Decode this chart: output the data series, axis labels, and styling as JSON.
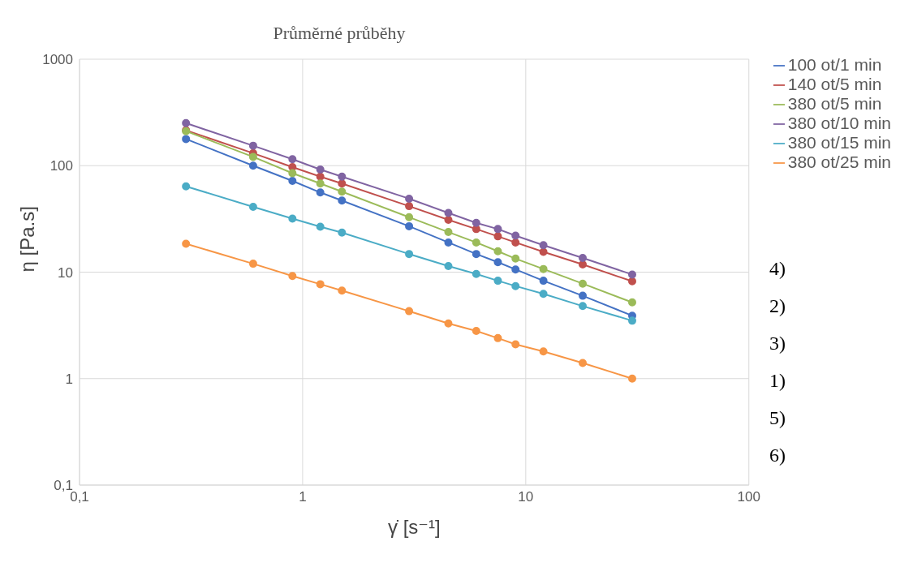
{
  "chart_data": {
    "type": "line",
    "title": "Průměrné průběhy",
    "xlabel": "γ̇  [s⁻¹]",
    "ylabel": "η [Pa.s]",
    "x": [
      0.3,
      0.6,
      0.9,
      1.2,
      1.5,
      3,
      4.5,
      6,
      7.5,
      9,
      12,
      18,
      30
    ],
    "series": [
      {
        "name": "100 ot/1 min",
        "color": "#4472c4",
        "values": [
          178,
          100,
          72,
          56,
          47,
          27,
          19,
          14.8,
          12.4,
          10.6,
          8.3,
          6,
          3.9
        ]
      },
      {
        "name": "140 ot/5 min",
        "color": "#c0504d",
        "values": [
          215,
          131,
          97,
          79,
          68,
          41.7,
          31,
          25.4,
          21.7,
          19,
          15.5,
          11.8,
          8.2
        ]
      },
      {
        "name": "380 ot/5 min",
        "color": "#9bbb59",
        "values": [
          211,
          121,
          85,
          68,
          57,
          32.8,
          23.8,
          19,
          15.7,
          13.4,
          10.7,
          7.8,
          5.2
        ]
      },
      {
        "name": "380 ot/10 min",
        "color": "#8064a2",
        "values": [
          251,
          154,
          115,
          92,
          79,
          49,
          36,
          29,
          25.4,
          22,
          17.9,
          13.6,
          9.5
        ]
      },
      {
        "name": "380 ot/15 min",
        "color": "#4bacc6",
        "values": [
          64,
          41,
          31.8,
          26.7,
          23.5,
          14.8,
          11.4,
          9.6,
          8.3,
          7.4,
          6.25,
          4.8,
          3.5
        ]
      },
      {
        "name": "380 ot/25 min",
        "color": "#f79646",
        "values": [
          18.5,
          12,
          9.2,
          7.7,
          6.7,
          4.3,
          3.3,
          2.8,
          2.4,
          2.1,
          1.8,
          1.4,
          1.0
        ]
      }
    ],
    "xlim": [
      0.1,
      100
    ],
    "xticks": [
      {
        "value": 0.1,
        "label": "0,1"
      },
      1,
      10,
      100
    ],
    "ylim": [
      0.1,
      1000
    ],
    "yticks": [
      {
        "value": 0.1,
        "label": "0,1"
      },
      1,
      10,
      100,
      1000
    ],
    "log": "xy",
    "grid": true,
    "legend": "right",
    "marker": "circle",
    "line_style": "solid",
    "annotations": [
      "4)",
      "2)",
      "3)",
      "1)",
      "5)",
      "6)"
    ]
  }
}
